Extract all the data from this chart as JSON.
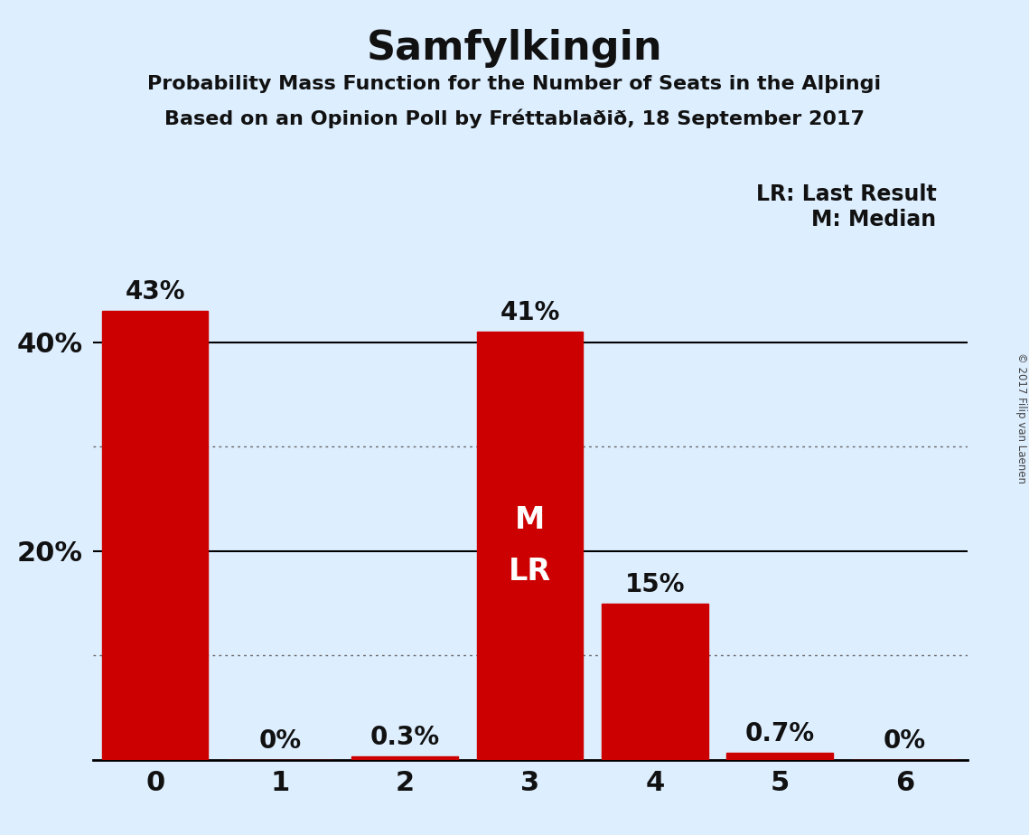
{
  "title": "Samfylkingin",
  "subtitle1": "Probability Mass Function for the Number of Seats in the Alþingi",
  "subtitle2": "Based on an Opinion Poll by Fréttablaðið, 18 September 2017",
  "categories": [
    0,
    1,
    2,
    3,
    4,
    5,
    6
  ],
  "values": [
    43,
    0,
    0.3,
    41,
    15,
    0.7,
    0
  ],
  "labels": [
    "43%",
    "0%",
    "0.3%",
    "41%",
    "15%",
    "0.7%",
    "0%"
  ],
  "bar_color": "#cc0000",
  "background_color": "#ddeeff",
  "title_color": "#111111",
  "text_color": "#111111",
  "ylim": [
    0,
    48
  ],
  "yticks": [
    20,
    40
  ],
  "ytick_labels": [
    "20%",
    "40%"
  ],
  "solid_gridlines": [
    20,
    40
  ],
  "dotted_gridlines": [
    10,
    30
  ],
  "median_bar": 3,
  "lr_bar": 3,
  "legend_lr": "LR: Last Result",
  "legend_m": "M: Median",
  "copyright": "© 2017 Filip van Laenen"
}
